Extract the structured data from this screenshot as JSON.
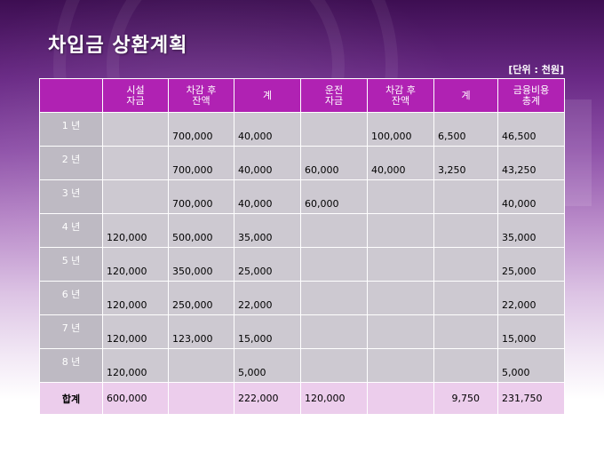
{
  "slide": {
    "title": "차입금 상환계획",
    "unit": "[단위 : 천원]"
  },
  "table": {
    "headers": [
      {
        "key": "year",
        "line1": "",
        "line2": ""
      },
      {
        "key": "facility_fund",
        "line1": "시설",
        "line2": "자금"
      },
      {
        "key": "balance_after_1",
        "line1": "차감 후",
        "line2": "잔액"
      },
      {
        "key": "sum_1",
        "line1": "계",
        "line2": ""
      },
      {
        "key": "operating_fund",
        "line1": "운전",
        "line2": "자금"
      },
      {
        "key": "balance_after_2",
        "line1": "차감 후",
        "line2": "잔액"
      },
      {
        "key": "sum_2",
        "line1": "계",
        "line2": ""
      },
      {
        "key": "financial_cost_total",
        "line1": "금융비용",
        "line2": "총계"
      }
    ],
    "rows": [
      [
        "1 년",
        "",
        "700,000",
        "40,000",
        "",
        "100,000",
        "6,500",
        "46,500"
      ],
      [
        "2 년",
        "",
        "700,000",
        "40,000",
        "60,000",
        "40,000",
        "3,250",
        "43,250"
      ],
      [
        "3 년",
        "",
        "700,000",
        "40,000",
        "60,000",
        "",
        "",
        "40,000"
      ],
      [
        "4 년",
        "120,000",
        "500,000",
        "35,000",
        "",
        "",
        "",
        "35,000"
      ],
      [
        "5 년",
        "120,000",
        "350,000",
        "25,000",
        "",
        "",
        "",
        "25,000"
      ],
      [
        "6 년",
        "120,000",
        "250,000",
        "22,000",
        "",
        "",
        "",
        "22,000"
      ],
      [
        "7 년",
        "120,000",
        "123,000",
        "15,000",
        "",
        "",
        "",
        "15,000"
      ],
      [
        "8 년",
        "120,000",
        "",
        "5,000",
        "",
        "",
        "",
        "5,000"
      ]
    ],
    "total": [
      "합계",
      "600,000",
      "",
      "222,000",
      "120,000",
      "",
      "9,750",
      "231,750"
    ]
  }
}
